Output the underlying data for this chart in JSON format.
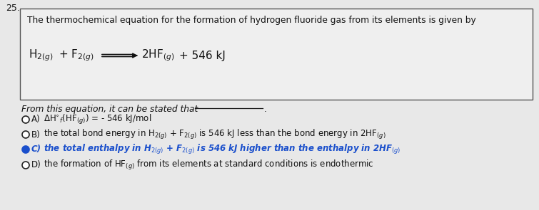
{
  "question_number": "25.",
  "box_text": "The thermochemical equation for the formation of hydrogen fluoride gas from its elements is given by",
  "from_text": "From this equation, it can be stated that",
  "background_color": "#e8e8e8",
  "box_facecolor": "#efefef",
  "box_edgecolor": "#555555",
  "text_color": "#111111",
  "selected_color": "#1a4fcc",
  "unselected_color": "#222222",
  "fig_width": 7.55,
  "fig_height": 2.95,
  "dpi": 100,
  "options": [
    {
      "label": "A)",
      "selected": false,
      "text_latex": "$\\Delta$H$^{\\circ}$$_f$(HF$_{(g)}$) = - 546 kJ/mol"
    },
    {
      "label": "B)",
      "selected": false,
      "text_latex": "the total bond energy in H$_{2(g)}$ + F$_{2(g)}$ is 546 kJ less than the bond energy in 2HF$_{(g)}$"
    },
    {
      "label": "C)",
      "selected": true,
      "text_latex": "the total enthalpy in H$_{2(g)}$ + F$_{2(g)}$ is 546 kJ higher than the enthalpy in 2HF$_{(g)}$"
    },
    {
      "label": "D)",
      "selected": false,
      "text_latex": "the formation of HF$_{(g)}$ from its elements at standard conditions is endothermic"
    }
  ]
}
